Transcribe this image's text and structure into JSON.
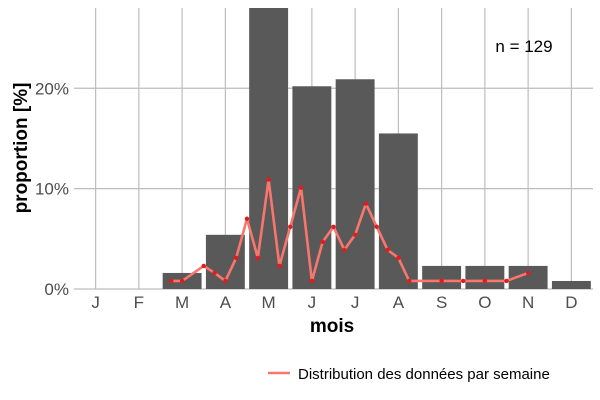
{
  "chart_data": {
    "type": "bar",
    "xlabel": "mois",
    "ylabel": "proportion [%]",
    "annotation": "n = 129",
    "categories": [
      "J",
      "F",
      "M",
      "A",
      "M",
      "J",
      "J",
      "A",
      "S",
      "O",
      "N",
      "D"
    ],
    "y_ticks": [
      0,
      10,
      20
    ],
    "y_tick_labels": [
      "0%",
      "10%",
      "20%"
    ],
    "ylim": [
      0,
      28
    ],
    "grid": true,
    "legend_position": "bottom-right",
    "colors": {
      "bar": "#595959",
      "line": "#f8766d",
      "point": "#e41a1c"
    },
    "series": [
      {
        "kind": "bar",
        "values": [
          0,
          0,
          1.6,
          5.4,
          28,
          20.2,
          20.9,
          15.5,
          2.3,
          2.3,
          2.3,
          0.8
        ]
      },
      {
        "kind": "line",
        "name": "Distribution des données par semaine",
        "x": [
          2.75,
          3.0,
          3.5,
          3.75,
          4.0,
          4.25,
          4.5,
          4.75,
          5.0,
          5.25,
          5.5,
          5.75,
          6.0,
          6.25,
          6.5,
          6.75,
          7.0,
          7.25,
          7.5,
          7.75,
          8.0,
          8.25,
          9.0,
          9.5,
          10.0,
          10.5,
          11.0
        ],
        "y": [
          0.8,
          0.8,
          2.3,
          1.6,
          0.8,
          3.1,
          7.0,
          3.1,
          10.9,
          2.3,
          6.2,
          10.1,
          0.8,
          4.7,
          6.2,
          3.9,
          5.4,
          8.5,
          6.2,
          3.9,
          3.1,
          0.8,
          0.8,
          0.8,
          0.8,
          0.8,
          1.6
        ]
      }
    ]
  }
}
